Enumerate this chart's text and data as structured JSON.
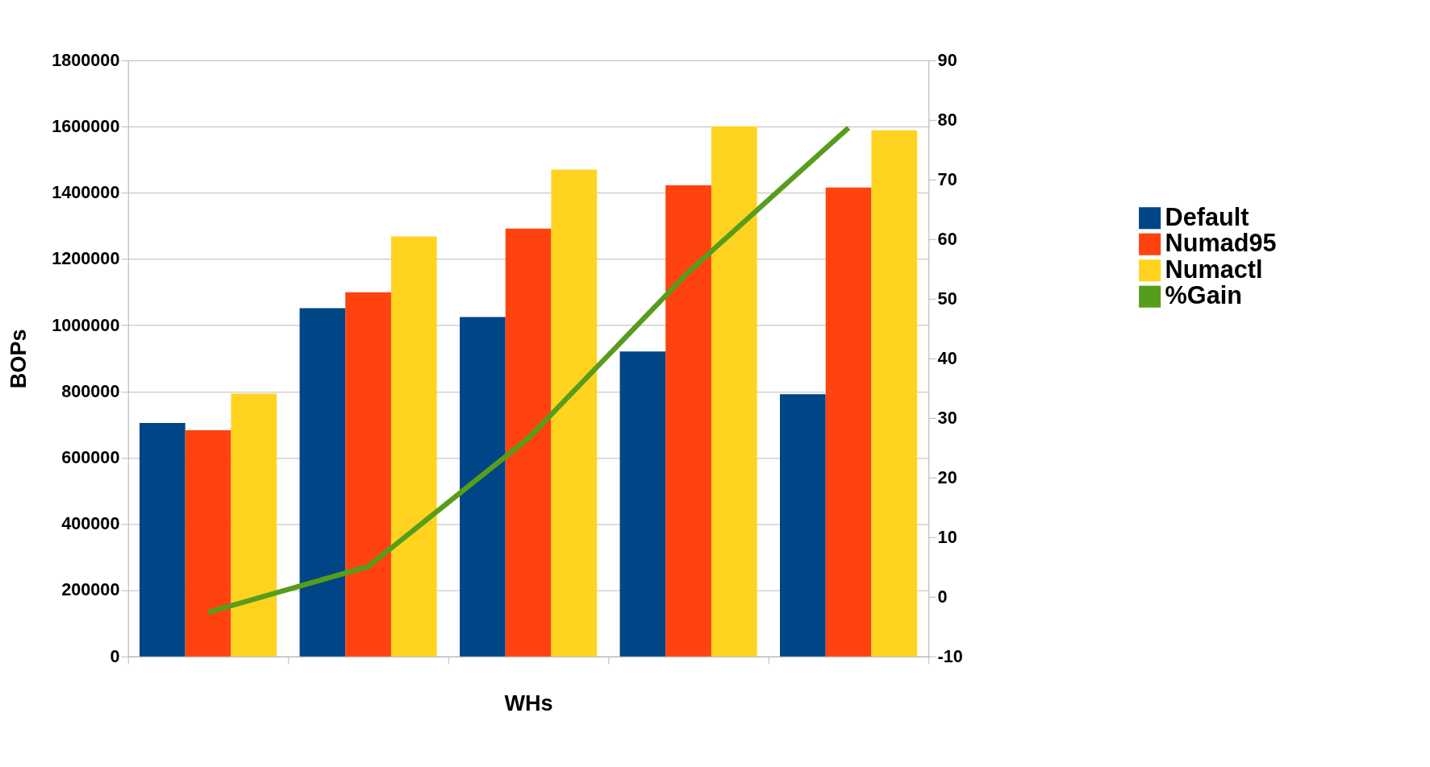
{
  "chart_data": {
    "type": "bar",
    "xlabel": "WHs",
    "ylabel": "BOPs",
    "categories": [
      null,
      null,
      null,
      null,
      null
    ],
    "series": [
      {
        "name": "Default",
        "color": "#004586",
        "values": [
          705000,
          1052000,
          1025000,
          921000,
          792000
        ]
      },
      {
        "name": "Numad95",
        "color": "#ff420e",
        "values": [
          683000,
          1100000,
          1292000,
          1423000,
          1416000
        ]
      },
      {
        "name": "Numactl",
        "color": "#ffd320",
        "values": [
          794000,
          1268000,
          1470000,
          1601000,
          1589000
        ]
      },
      {
        "name": "%Gain",
        "color": "#579d1c",
        "type": "line",
        "axis": "y2",
        "values": [
          -2.6,
          5.1,
          26.6,
          54.5,
          78.7
        ]
      }
    ],
    "ylim": [
      0,
      1800000
    ],
    "yticks": [
      0,
      200000,
      400000,
      600000,
      800000,
      1000000,
      1200000,
      1400000,
      1600000,
      1800000
    ],
    "y2lim": [
      -10,
      90
    ],
    "y2ticks": [
      -10,
      0,
      10,
      20,
      30,
      40,
      50,
      60,
      70,
      80,
      90
    ],
    "grid": "y",
    "legend": "right",
    "tick_labels": "y",
    "marker": "none",
    "line_style": "solid"
  }
}
